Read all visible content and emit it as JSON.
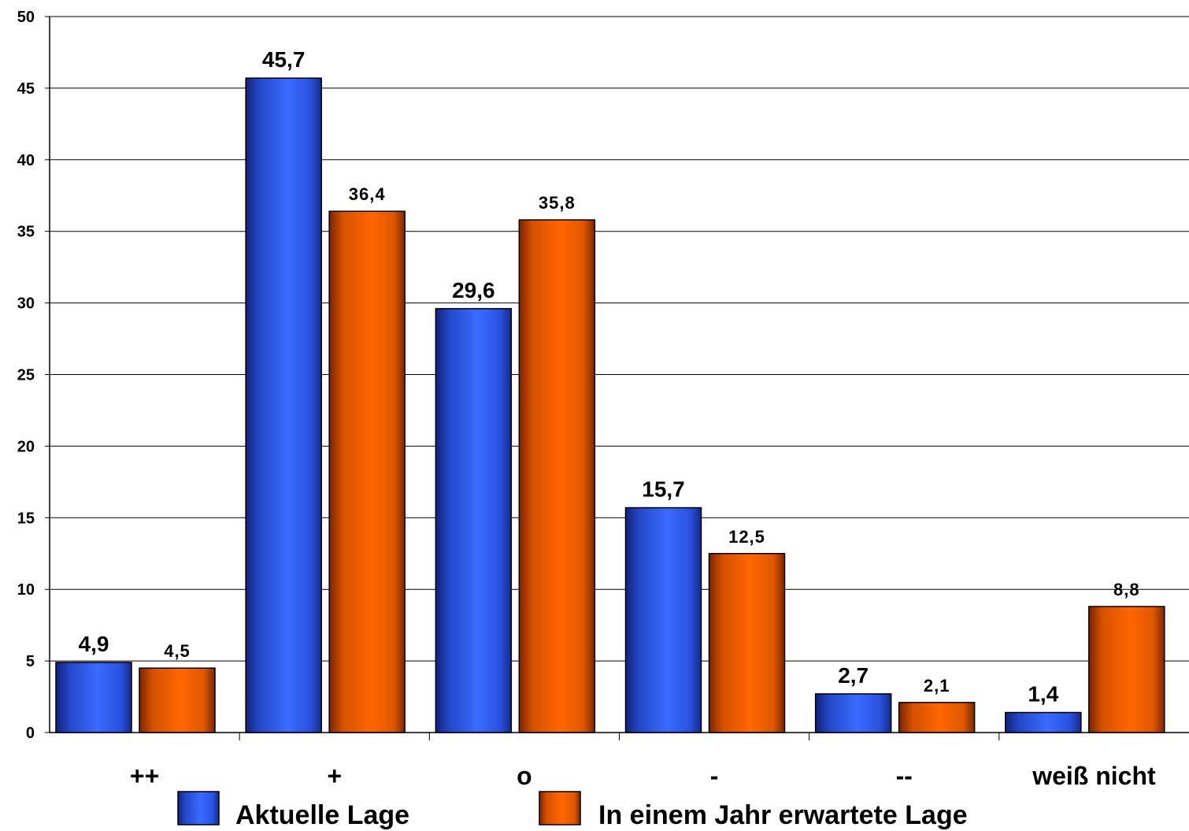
{
  "chart_data": {
    "type": "bar",
    "categories": [
      "++",
      "+",
      "o",
      "-",
      "--",
      "weiß nicht"
    ],
    "series": [
      {
        "name": "Aktuelle Lage",
        "values": [
          4.9,
          45.7,
          29.6,
          15.7,
          2.7,
          1.4
        ],
        "labels": [
          "4,9",
          "45,7",
          "29,6",
          "15,7",
          "2,7",
          "1,4"
        ],
        "color": "#3366ff"
      },
      {
        "name": "In einem Jahr erwartete  Lage",
        "values": [
          4.5,
          36.4,
          35.8,
          12.5,
          2.1,
          8.8
        ],
        "labels": [
          "4,5",
          "36,4",
          "35,8",
          "12,5",
          "2,1",
          "8,8"
        ],
        "color": "#ff6600"
      }
    ],
    "ylim": [
      0,
      50
    ],
    "yticks": [
      "0",
      "5",
      "10",
      "15",
      "20",
      "25",
      "30",
      "35",
      "40",
      "45",
      "50"
    ],
    "grid": true,
    "legend_position": "bottom"
  }
}
